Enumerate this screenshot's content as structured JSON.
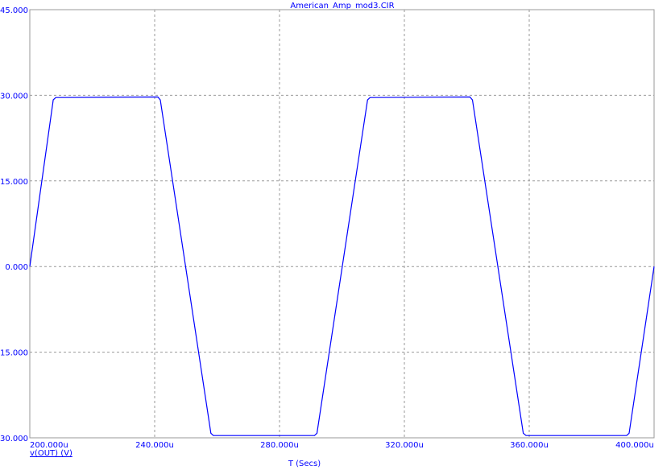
{
  "chart_data": {
    "type": "line",
    "title": "American_Amp_mod3.CIR",
    "xlabel": "T (Secs)",
    "ylabel": "",
    "xlim": [
      200,
      400
    ],
    "ylim": [
      -30,
      45
    ],
    "x_unit_suffix": "u",
    "x_ticks": [
      "200.000u",
      "240.000u",
      "280.000u",
      "320.000u",
      "360.000u",
      "400.000u"
    ],
    "x_tick_values": [
      200,
      240,
      280,
      320,
      360,
      400
    ],
    "y_ticks": [
      "-30.000",
      "-15.000",
      "0.000",
      "15.000",
      "30.000",
      "45.000"
    ],
    "y_tick_values": [
      -30,
      -15,
      0,
      15,
      30,
      45
    ],
    "grid": true,
    "legend": "bottom-left",
    "series": [
      {
        "name": "v(OUT) (V)",
        "color": "#0000ff",
        "x": [
          200,
          207.5,
          208.3,
          241.0,
          241.8,
          258.0,
          258.8,
          291.2,
          292.0,
          308.2,
          309.0,
          341.0,
          341.8,
          358.1,
          359.0,
          391.2,
          392.0,
          400
        ],
        "y": [
          0,
          29.2,
          29.6,
          29.7,
          29.2,
          -29.2,
          -29.6,
          -29.6,
          -29.2,
          29.2,
          29.6,
          29.7,
          29.2,
          -29.2,
          -29.6,
          -29.6,
          -29.2,
          0
        ]
      }
    ]
  }
}
